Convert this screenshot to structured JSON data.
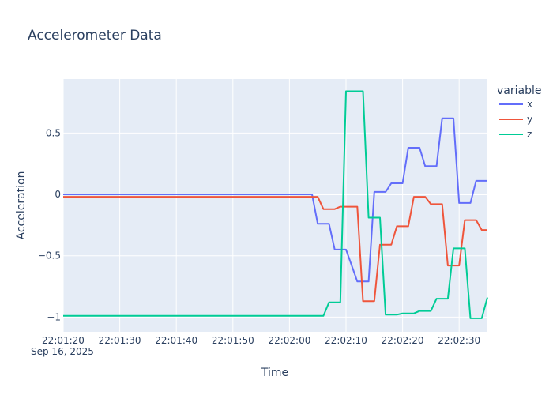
{
  "chart_data": {
    "type": "line",
    "title": "Accelerometer Data",
    "xlabel": "Time",
    "ylabel": "Acceleration",
    "x_date_annotation": "Sep 16, 2025",
    "legend_title": "variable",
    "legend_position": "right",
    "grid": true,
    "xlim": [
      "22:01:20",
      "22:02:35"
    ],
    "ylim": [
      -1.12,
      0.94
    ],
    "x_ticks": [
      "22:01:20",
      "22:01:30",
      "22:01:40",
      "22:01:50",
      "22:02:00",
      "22:02:10",
      "22:02:20",
      "22:02:30"
    ],
    "y_ticks": [
      {
        "value": 0.5,
        "label": "0.5"
      },
      {
        "value": 0,
        "label": "0"
      },
      {
        "value": -0.5,
        "label": "−0.5"
      },
      {
        "value": -1,
        "label": "−1"
      }
    ],
    "series": [
      {
        "name": "x",
        "color": "#636efa",
        "points": [
          [
            "22:01:20",
            0.0
          ],
          [
            "22:01:21",
            0.0
          ],
          [
            "22:01:22",
            0.0
          ],
          [
            "22:01:23",
            0.0
          ],
          [
            "22:02:04",
            0.0
          ],
          [
            "22:02:05",
            -0.24
          ],
          [
            "22:02:06",
            -0.24
          ],
          [
            "22:02:07",
            -0.24
          ],
          [
            "22:02:08",
            -0.45
          ],
          [
            "22:02:09",
            -0.45
          ],
          [
            "22:02:10",
            -0.45
          ],
          [
            "22:02:11",
            -0.58
          ],
          [
            "22:02:12",
            -0.71
          ],
          [
            "22:02:13",
            -0.71
          ],
          [
            "22:02:14",
            -0.71
          ],
          [
            "22:02:15",
            0.02
          ],
          [
            "22:02:16",
            0.02
          ],
          [
            "22:02:17",
            0.02
          ],
          [
            "22:02:18",
            0.09
          ],
          [
            "22:02:19",
            0.09
          ],
          [
            "22:02:20",
            0.09
          ],
          [
            "22:02:21",
            0.38
          ],
          [
            "22:02:22",
            0.38
          ],
          [
            "22:02:23",
            0.38
          ],
          [
            "22:02:24",
            0.23
          ],
          [
            "22:02:25",
            0.23
          ],
          [
            "22:02:26",
            0.23
          ],
          [
            "22:02:27",
            0.62
          ],
          [
            "22:02:28",
            0.62
          ],
          [
            "22:02:29",
            0.62
          ],
          [
            "22:02:30",
            -0.07
          ],
          [
            "22:02:31",
            -0.07
          ],
          [
            "22:02:32",
            -0.07
          ],
          [
            "22:02:33",
            0.11
          ],
          [
            "22:02:34",
            0.11
          ],
          [
            "22:02:35",
            0.11
          ]
        ]
      },
      {
        "name": "y",
        "color": "#ef553b",
        "points": [
          [
            "22:01:20",
            -0.02
          ],
          [
            "22:02:05",
            -0.02
          ],
          [
            "22:02:06",
            -0.12
          ],
          [
            "22:02:07",
            -0.12
          ],
          [
            "22:02:08",
            -0.12
          ],
          [
            "22:02:09",
            -0.1
          ],
          [
            "22:02:10",
            -0.1
          ],
          [
            "22:02:11",
            -0.1
          ],
          [
            "22:02:12",
            -0.1
          ],
          [
            "22:02:13",
            -0.87
          ],
          [
            "22:02:14",
            -0.87
          ],
          [
            "22:02:15",
            -0.87
          ],
          [
            "22:02:16",
            -0.41
          ],
          [
            "22:02:17",
            -0.41
          ],
          [
            "22:02:18",
            -0.41
          ],
          [
            "22:02:19",
            -0.26
          ],
          [
            "22:02:20",
            -0.26
          ],
          [
            "22:02:21",
            -0.26
          ],
          [
            "22:02:22",
            -0.02
          ],
          [
            "22:02:23",
            -0.02
          ],
          [
            "22:02:24",
            -0.02
          ],
          [
            "22:02:25",
            -0.08
          ],
          [
            "22:02:26",
            -0.08
          ],
          [
            "22:02:27",
            -0.08
          ],
          [
            "22:02:28",
            -0.58
          ],
          [
            "22:02:29",
            -0.58
          ],
          [
            "22:02:30",
            -0.58
          ],
          [
            "22:02:31",
            -0.21
          ],
          [
            "22:02:32",
            -0.21
          ],
          [
            "22:02:33",
            -0.21
          ],
          [
            "22:02:34",
            -0.29
          ],
          [
            "22:02:35",
            -0.29
          ]
        ]
      },
      {
        "name": "z",
        "color": "#00cc96",
        "points": [
          [
            "22:01:20",
            -0.99
          ],
          [
            "22:02:06",
            -0.99
          ],
          [
            "22:02:07",
            -0.88
          ],
          [
            "22:02:08",
            -0.88
          ],
          [
            "22:02:09",
            -0.88
          ],
          [
            "22:02:10",
            0.84
          ],
          [
            "22:02:11",
            0.84
          ],
          [
            "22:02:12",
            0.84
          ],
          [
            "22:02:13",
            0.84
          ],
          [
            "22:02:14",
            -0.19
          ],
          [
            "22:02:15",
            -0.19
          ],
          [
            "22:02:16",
            -0.19
          ],
          [
            "22:02:17",
            -0.98
          ],
          [
            "22:02:18",
            -0.98
          ],
          [
            "22:02:19",
            -0.98
          ],
          [
            "22:02:20",
            -0.97
          ],
          [
            "22:02:21",
            -0.97
          ],
          [
            "22:02:22",
            -0.97
          ],
          [
            "22:02:23",
            -0.95
          ],
          [
            "22:02:24",
            -0.95
          ],
          [
            "22:02:25",
            -0.95
          ],
          [
            "22:02:26",
            -0.85
          ],
          [
            "22:02:27",
            -0.85
          ],
          [
            "22:02:28",
            -0.85
          ],
          [
            "22:02:29",
            -0.44
          ],
          [
            "22:02:30",
            -0.44
          ],
          [
            "22:02:31",
            -0.44
          ],
          [
            "22:02:32",
            -1.01
          ],
          [
            "22:02:33",
            -1.01
          ],
          [
            "22:02:34",
            -1.01
          ],
          [
            "22:02:35",
            -0.84
          ]
        ]
      }
    ]
  }
}
